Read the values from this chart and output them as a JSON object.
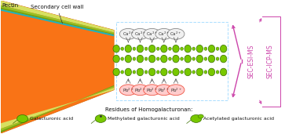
{
  "bg_color": "#ffffff",
  "cell_wall_color": "#f97316",
  "arrow_color": "#cc44aa",
  "label_pectin": "Pectin",
  "label_sec_wall": "Secondary cell wall",
  "label_sec_esi": "SEC-ESI-MS",
  "label_sec_icp": "SEC-ICP-MS",
  "label_residues": "Residues of Homogalacturonan:",
  "label_gal": "Galacturonic acid",
  "label_methyl": "Methylated galacturonic acid",
  "label_acetyl": "Acetylated galacturonic acid",
  "figsize": [
    3.77,
    1.71
  ],
  "dpi": 100
}
